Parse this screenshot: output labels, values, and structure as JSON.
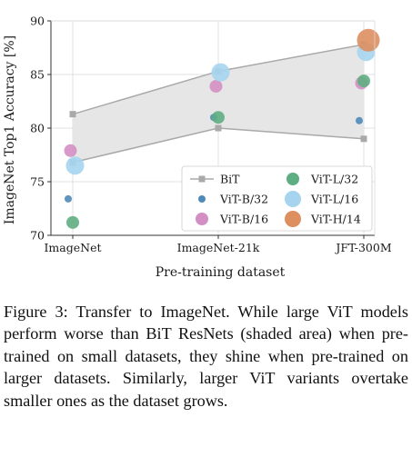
{
  "chart_data": {
    "type": "scatter",
    "categories": [
      "ImageNet",
      "ImageNet-21k",
      "JFT-300M"
    ],
    "xlabel": "Pre-training dataset",
    "ylabel": "ImageNet Top1 Accuracy [%]",
    "ylim": [
      70,
      90
    ],
    "yticks": [
      70,
      75,
      80,
      85,
      90
    ],
    "grid": true,
    "legend_position": "bottom-right",
    "shaded_band": {
      "description_from_caption": "BiT ResNets (shaded area)",
      "upper": [
        81.3,
        85.3,
        87.8
      ],
      "lower": [
        76.8,
        80.0,
        79.0
      ],
      "color": "#e6e6e6"
    },
    "series": [
      {
        "name": "BiT",
        "marker": "square-line",
        "color": "#a9a9a9",
        "values": [
          81.3,
          85.3,
          87.8
        ],
        "values_lower": [
          76.8,
          80.0,
          79.0
        ]
      },
      {
        "name": "ViT-B/32",
        "marker": "circle",
        "size": "small",
        "color": "#4f8ab8",
        "values": [
          73.4,
          81.0,
          80.7
        ]
      },
      {
        "name": "ViT-B/16",
        "marker": "circle",
        "size": "medium",
        "color": "#d38fc3",
        "values": [
          77.9,
          83.9,
          84.2
        ]
      },
      {
        "name": "ViT-L/32",
        "marker": "circle",
        "size": "medium",
        "color": "#5fae82",
        "values": [
          71.2,
          81.0,
          84.4
        ]
      },
      {
        "name": "ViT-L/16",
        "marker": "circle",
        "size": "large",
        "color": "#a6d4ef",
        "values": [
          76.5,
          85.2,
          87.1
        ]
      },
      {
        "name": "ViT-H/14",
        "marker": "circle",
        "size": "xlarge",
        "color": "#de8f5f",
        "values": [
          null,
          null,
          88.2
        ]
      }
    ]
  },
  "caption": "Figure 3: Transfer to ImageNet. While large ViT models perform worse than BiT ResNets (shaded area) when pre-trained on small datasets, they shine when pre-trained on larger datasets. Similarly, larger ViT variants overtake smaller ones as the dataset grows."
}
